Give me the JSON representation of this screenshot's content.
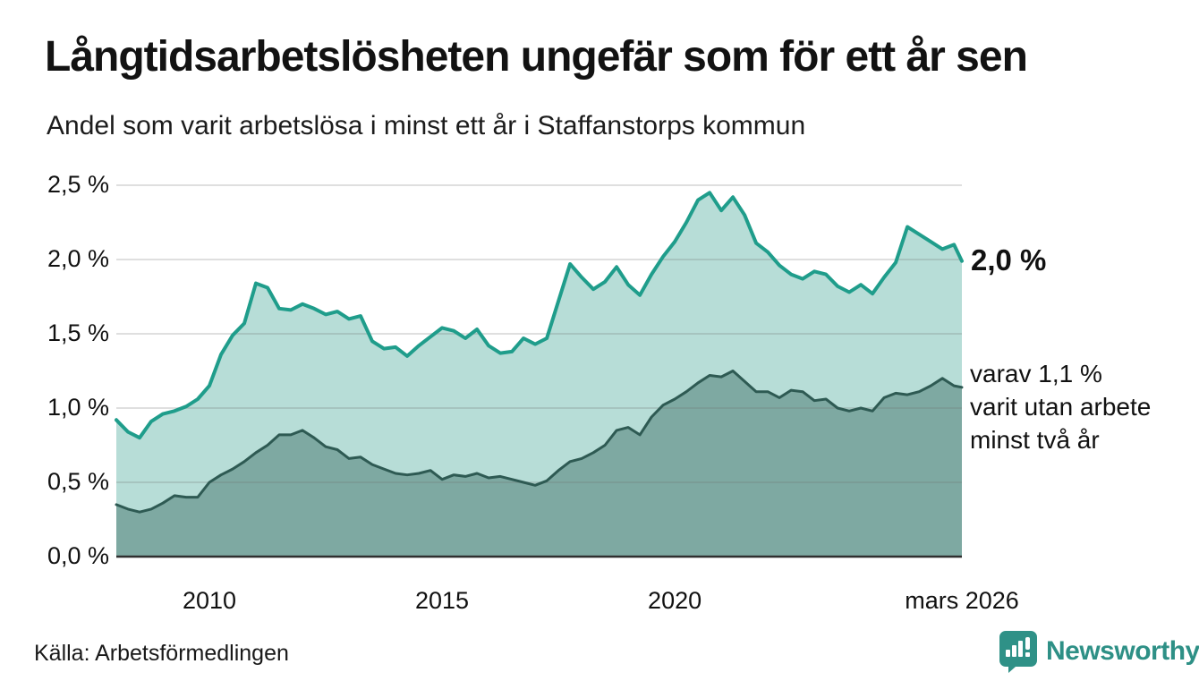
{
  "header": {
    "title": "Långtidsarbetslösheten ungefär som för ett år sen",
    "subtitle": "Andel som varit arbetslösa i minst ett år i Staffanstorps kommun"
  },
  "chart_data": {
    "type": "area",
    "title": "Långtidsarbetslösheten ungefär som för ett år sen",
    "subtitle": "Andel som varit arbetslösa i minst ett år i Staffanstorps kommun",
    "x_unit": "decimal_year (monthly series, Jan 2008 – mars 2026, sampled quarterly)",
    "xlim": [
      2008,
      2026.17
    ],
    "ylim": [
      0,
      2.6
    ],
    "grid": true,
    "x": [
      2008,
      2008.25,
      2008.5,
      2008.75,
      2009,
      2009.25,
      2009.5,
      2009.75,
      2010,
      2010.25,
      2010.5,
      2010.75,
      2011,
      2011.25,
      2011.5,
      2011.75,
      2012,
      2012.25,
      2012.5,
      2012.75,
      2013,
      2013.25,
      2013.5,
      2013.75,
      2014,
      2014.25,
      2014.5,
      2014.75,
      2015,
      2015.25,
      2015.5,
      2015.75,
      2016,
      2016.25,
      2016.5,
      2016.75,
      2017,
      2017.25,
      2017.5,
      2017.75,
      2018,
      2018.25,
      2018.5,
      2018.75,
      2019,
      2019.25,
      2019.5,
      2019.75,
      2020,
      2020.25,
      2020.5,
      2020.75,
      2021,
      2021.25,
      2021.5,
      2021.75,
      2022,
      2022.25,
      2022.5,
      2022.75,
      2023,
      2023.25,
      2023.5,
      2023.75,
      2024,
      2024.25,
      2024.5,
      2024.75,
      2025,
      2025.25,
      2025.5,
      2025.75,
      2026,
      2026.17
    ],
    "series": [
      {
        "name": "Andel arbetslösa minst ett år",
        "line_color": "#1f9d8b",
        "fill_color": "#b7ddd7",
        "latest_label": "2,0 %",
        "values": [
          0.92,
          0.84,
          0.8,
          0.91,
          0.96,
          0.98,
          1.01,
          1.06,
          1.15,
          1.36,
          1.49,
          1.57,
          1.84,
          1.81,
          1.67,
          1.66,
          1.7,
          1.67,
          1.63,
          1.65,
          1.6,
          1.62,
          1.45,
          1.4,
          1.41,
          1.35,
          1.42,
          1.48,
          1.54,
          1.52,
          1.47,
          1.53,
          1.42,
          1.37,
          1.38,
          1.47,
          1.43,
          1.47,
          1.72,
          1.97,
          1.88,
          1.8,
          1.85,
          1.95,
          1.83,
          1.76,
          1.9,
          2.02,
          2.12,
          2.25,
          2.4,
          2.45,
          2.33,
          2.42,
          2.3,
          2.11,
          2.05,
          1.96,
          1.9,
          1.87,
          1.92,
          1.9,
          1.82,
          1.78,
          1.83,
          1.77,
          1.88,
          1.98,
          2.22,
          2.17,
          2.12,
          2.07,
          2.1,
          1.99
        ]
      },
      {
        "name": "varav utan arbete minst två år",
        "line_color": "#2e5a53",
        "fill_color": "#7ea9a2",
        "latest_label": "1,1 %",
        "values": [
          0.35,
          0.32,
          0.3,
          0.32,
          0.36,
          0.41,
          0.4,
          0.4,
          0.5,
          0.55,
          0.59,
          0.64,
          0.7,
          0.75,
          0.82,
          0.82,
          0.85,
          0.8,
          0.74,
          0.72,
          0.66,
          0.67,
          0.62,
          0.59,
          0.56,
          0.55,
          0.56,
          0.58,
          0.52,
          0.55,
          0.54,
          0.56,
          0.53,
          0.54,
          0.52,
          0.5,
          0.48,
          0.51,
          0.58,
          0.64,
          0.66,
          0.7,
          0.75,
          0.85,
          0.87,
          0.82,
          0.94,
          1.02,
          1.06,
          1.11,
          1.17,
          1.22,
          1.21,
          1.25,
          1.18,
          1.11,
          1.11,
          1.07,
          1.12,
          1.11,
          1.05,
          1.06,
          1.0,
          0.98,
          1.0,
          0.98,
          1.07,
          1.1,
          1.09,
          1.11,
          1.15,
          1.2,
          1.15,
          1.14
        ]
      }
    ],
    "yticks": [
      {
        "v": 0,
        "label": "0,0 %"
      },
      {
        "v": 0.5,
        "label": "0,5 %"
      },
      {
        "v": 1,
        "label": "1,0 %"
      },
      {
        "v": 1.5,
        "label": "1,5 %"
      },
      {
        "v": 2,
        "label": "2,0 %"
      },
      {
        "v": 2.5,
        "label": "2,5 %"
      }
    ],
    "xticks": [
      {
        "v": 2010,
        "label": "2010"
      },
      {
        "v": 2015,
        "label": "2015"
      },
      {
        "v": 2020,
        "label": "2020"
      },
      {
        "v": 2026.17,
        "label": "mars 2026"
      }
    ],
    "legend_position": "none"
  },
  "annotations": {
    "latest_value_label": "2,0 %",
    "secondary_note_lines": [
      "varav 1,1 %",
      "varit utan arbete",
      "minst två år"
    ]
  },
  "footer": {
    "source": "Källa: Arbetsförmedlingen",
    "brand": "Newsworthy",
    "brand_color": "#2e9086"
  }
}
